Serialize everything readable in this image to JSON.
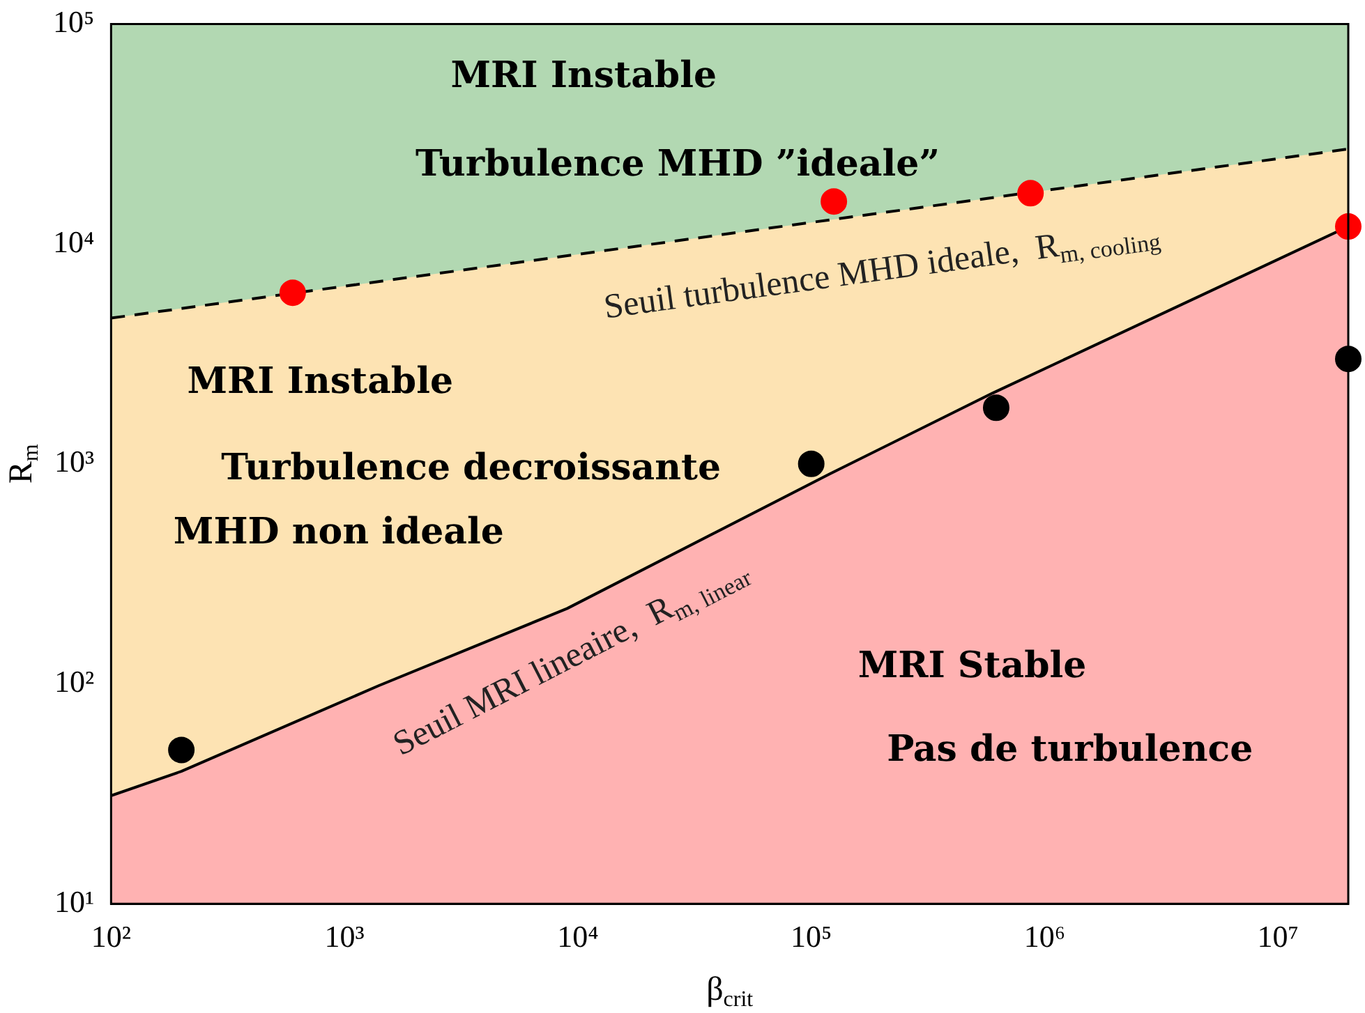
{
  "chart_data": {
    "type": "area",
    "xlabel": "β$_{crit}$",
    "ylabel": "R$_{m}$",
    "log": "xy",
    "grid": false,
    "legend": false,
    "xlim": [
      100,
      20000000
    ],
    "ylim": [
      10,
      100000
    ],
    "xticks": [
      {
        "value": 100,
        "label": "10²"
      },
      {
        "value": 1000,
        "label": "10³"
      },
      {
        "value": 10000,
        "label": "10⁴"
      },
      {
        "value": 100000,
        "label": "10⁵"
      },
      {
        "value": 1000000,
        "label": "10⁶"
      },
      {
        "value": 10000000,
        "label": "10⁷"
      }
    ],
    "yticks": [
      {
        "value": 10,
        "label": "10¹"
      },
      {
        "value": 100,
        "label": "10²"
      },
      {
        "value": 1000,
        "label": "10³"
      },
      {
        "value": 10000,
        "label": "10⁴"
      },
      {
        "value": 100000,
        "label": "10⁵"
      }
    ],
    "series": [
      {
        "color": "#b2d8b2",
        "x": [
          100,
          20000000
        ],
        "values": [
          100000,
          100000
        ]
      },
      {
        "color": "#fde3b3",
        "x": [
          100,
          20000000
        ],
        "values": [
          4600,
          27000
        ],
        "line_style": "dashed"
      },
      {
        "color": "#ffb2b2",
        "x": [
          100,
          200,
          1400,
          9000,
          120000,
          600000,
          20000000
        ],
        "values": [
          31,
          40,
          98,
          220,
          900,
          2100,
          12000
        ],
        "line_style": "solid"
      },
      {
        "type": "scatter",
        "color": "#ff0000",
        "marker": "circle",
        "x": [
          600,
          125000,
          870000,
          20000000
        ],
        "values": [
          6000,
          15600,
          17000,
          12000
        ]
      },
      {
        "type": "scatter",
        "color": "#000000",
        "marker": "circle",
        "x": [
          200,
          100000,
          620000,
          20000000
        ],
        "values": [
          50,
          1000,
          1800,
          3000
        ]
      }
    ],
    "annotations": [
      "MRI Instable",
      "Turbulence MHD ”ideale”",
      "Seuil turbulence MHD ideale,  R$_{m, cooling}$",
      "MRI Instable",
      "Turbulence decroissante",
      "MHD non ideale",
      "Seuil MRI lineaire,  R$_{m, linear}$",
      "MRI Stable",
      "Pas de turbulence"
    ]
  }
}
